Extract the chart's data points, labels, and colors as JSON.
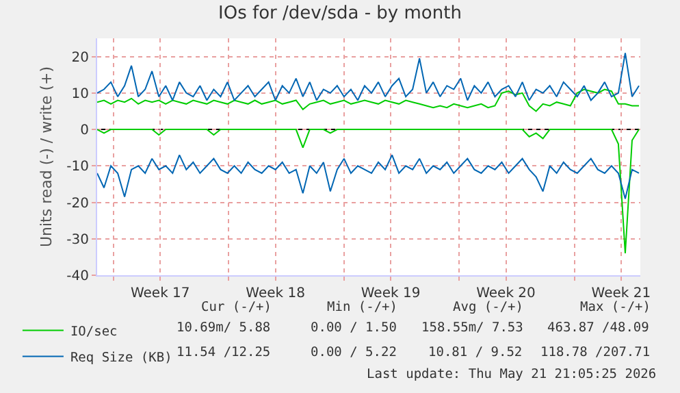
{
  "chart_data": {
    "type": "line",
    "title": "IOs for /dev/sda - by month",
    "ylabel": "Units read (-) / write (+)",
    "x": [
      "2026-04-19T00:00",
      "2026-04-19T10:00",
      "2026-04-19T20:00",
      "2026-04-20T06:00",
      "2026-04-20T16:00",
      "2026-04-21T02:00",
      "2026-04-21T12:00",
      "2026-04-21T22:00",
      "2026-04-22T08:00",
      "2026-04-22T18:00",
      "2026-04-23T04:00",
      "2026-04-23T14:00",
      "2026-04-24T00:00",
      "2026-04-24T10:00",
      "2026-04-24T20:00",
      "2026-04-25T06:00",
      "2026-04-25T16:00",
      "2026-04-26T02:00",
      "2026-04-26T12:00",
      "2026-04-26T22:00",
      "2026-04-27T08:00",
      "2026-04-27T18:00",
      "2026-04-28T04:00",
      "2026-04-28T14:00",
      "2026-04-29T00:00",
      "2026-04-29T10:00",
      "2026-04-29T20:00",
      "2026-04-30T06:00",
      "2026-04-30T16:00",
      "2026-05-01T02:00",
      "2026-05-01T12:00",
      "2026-05-01T22:00",
      "2026-05-02T08:00",
      "2026-05-02T18:00",
      "2026-05-03T04:00",
      "2026-05-03T14:00",
      "2026-05-04T00:00",
      "2026-05-04T10:00",
      "2026-05-04T20:00",
      "2026-05-05T06:00",
      "2026-05-05T16:00",
      "2026-05-06T02:00",
      "2026-05-06T12:00",
      "2026-05-06T22:00",
      "2026-05-07T08:00",
      "2026-05-07T18:00",
      "2026-05-08T04:00",
      "2026-05-08T14:00",
      "2026-05-09T00:00",
      "2026-05-09T10:00",
      "2026-05-09T20:00",
      "2026-05-10T06:00",
      "2026-05-10T16:00",
      "2026-05-11T02:00",
      "2026-05-11T12:00",
      "2026-05-11T22:00",
      "2026-05-12T08:00",
      "2026-05-12T18:00",
      "2026-05-13T04:00",
      "2026-05-13T14:00",
      "2026-05-14T00:00",
      "2026-05-14T10:00",
      "2026-05-14T20:00",
      "2026-05-15T06:00",
      "2026-05-15T16:00",
      "2026-05-16T02:00",
      "2026-05-16T12:00",
      "2026-05-16T22:00",
      "2026-05-17T08:00",
      "2026-05-17T18:00",
      "2026-05-18T04:00",
      "2026-05-18T14:00",
      "2026-05-19T00:00",
      "2026-05-19T10:00",
      "2026-05-19T20:00",
      "2026-05-20T06:00",
      "2026-05-20T16:00",
      "2026-05-21T02:00",
      "2026-05-21T12:00",
      "2026-05-21T22:00"
    ],
    "series": [
      {
        "name": "IO/sec",
        "color": "#00cc00",
        "values": [
          7.5,
          8,
          7,
          8,
          7.5,
          8.5,
          7,
          8,
          7.5,
          8,
          7,
          8,
          7.5,
          7,
          8,
          7.5,
          7,
          8,
          7.5,
          7,
          8,
          7.5,
          7,
          8,
          7,
          7.5,
          8,
          7,
          7.5,
          8,
          5.5,
          7,
          7.5,
          8,
          7,
          7.5,
          8,
          7,
          7.5,
          8,
          7.5,
          7,
          8,
          7.5,
          7,
          8,
          7.5,
          7,
          6.5,
          6,
          6.5,
          6,
          7,
          6.5,
          6,
          6.5,
          7,
          6,
          6.5,
          10,
          10.5,
          9.5,
          10,
          6.5,
          5,
          7,
          6.5,
          7.5,
          7,
          6.5,
          10,
          11,
          10.5,
          10,
          11,
          10.5,
          7,
          7,
          6.5,
          6.5
        ]
      },
      {
        "color": "#00cc00",
        "values": [
          0,
          -1,
          0,
          0,
          0,
          0,
          0,
          0,
          0,
          -1.5,
          0,
          0,
          0,
          0,
          0,
          0,
          0,
          -1.5,
          0,
          0,
          0,
          0,
          0,
          0,
          0,
          0,
          0,
          0,
          0,
          0,
          -5,
          0,
          0,
          0,
          -1,
          0,
          0,
          0,
          0,
          0,
          0,
          0,
          0,
          0,
          0,
          0,
          0,
          0,
          0,
          0,
          0,
          0,
          0,
          0,
          0,
          0,
          0,
          0,
          0,
          0,
          0,
          0,
          0,
          -2,
          -1,
          -2.5,
          0,
          0,
          0,
          0,
          0,
          0,
          0,
          0,
          0,
          0,
          -4,
          -34,
          -3,
          0
        ]
      },
      {
        "name": "Req Size (KB)",
        "color": "#0066b3",
        "values": [
          10,
          11,
          13,
          9,
          12,
          17.5,
          9,
          11,
          16,
          9,
          12,
          8,
          13,
          10,
          9,
          12,
          8,
          11,
          9,
          13,
          8,
          10,
          12,
          9,
          11,
          13,
          8,
          12,
          10,
          14,
          9,
          13,
          8,
          11,
          10,
          12,
          9,
          11,
          8,
          12,
          10,
          13,
          9,
          12,
          14,
          9,
          11,
          19.5,
          10,
          13,
          9,
          12,
          11,
          14,
          8,
          12,
          10,
          13,
          9,
          11,
          12,
          9,
          13,
          8,
          11,
          10,
          12,
          9,
          13,
          11,
          9,
          12,
          8,
          10,
          13,
          9,
          10,
          21,
          9,
          12
        ]
      },
      {
        "color": "#0066b3",
        "values": [
          -12,
          -16,
          -10,
          -12,
          -18.5,
          -11,
          -10,
          -12,
          -8,
          -11,
          -10,
          -12,
          -7,
          -11,
          -9,
          -12,
          -10,
          -8,
          -11,
          -12,
          -10,
          -12,
          -9,
          -11,
          -12,
          -10,
          -11,
          -9,
          -12,
          -11,
          -17.5,
          -10,
          -12,
          -9,
          -17,
          -11,
          -8,
          -12,
          -10,
          -11,
          -12,
          -9,
          -11,
          -7,
          -12,
          -10,
          -11,
          -8,
          -12,
          -10,
          -11,
          -9,
          -12,
          -10,
          -8,
          -11,
          -12,
          -10,
          -11,
          -9,
          -12,
          -10,
          -8,
          -11,
          -13,
          -17,
          -10,
          -12,
          -9,
          -11,
          -12,
          -10,
          -8,
          -11,
          -12,
          -10,
          -12,
          -19,
          -11,
          -12
        ]
      }
    ],
    "xlim": [
      "2026-04-19T00:00",
      "2026-05-22T00:00"
    ],
    "xticks": [
      {
        "value": "2026-04-20T00:00",
        "label": null
      },
      {
        "value": "2026-04-22T20:00",
        "label": "Week 17"
      },
      {
        "value": "2026-04-27T00:00",
        "label": null
      },
      {
        "value": "2026-04-29T20:00",
        "label": "Week 18"
      },
      {
        "value": "2026-05-04T00:00",
        "label": null
      },
      {
        "value": "2026-05-06T20:00",
        "label": "Week 19"
      },
      {
        "value": "2026-05-11T00:00",
        "label": null
      },
      {
        "value": "2026-05-13T20:00",
        "label": "Week 20"
      },
      {
        "value": "2026-05-18T00:00",
        "label": null
      },
      {
        "value": "2026-05-20T20:00",
        "label": "Week 21"
      }
    ],
    "ylim": [
      -40,
      25
    ],
    "yticks": [
      -40,
      -30,
      -20,
      -10,
      0,
      10,
      20
    ],
    "ref_lines": [
      {
        "axis": "y",
        "value": 0,
        "color": "#000000"
      }
    ],
    "grid": true,
    "legend": "bottom left",
    "marker": "none",
    "line_style": "solid",
    "annotations": [
      "Cur (-/+)",
      "Min (-/+)",
      "Avg (-/+)",
      "Max (-/+)",
      "10.69m/ 5.88",
      "0.00 / 1.50",
      "158.55m/ 7.53",
      "463.87 /48.09",
      "11.54 /12.25",
      "0.00 / 5.22",
      "10.81 / 9.52",
      "118.78 /207.71",
      "Last update: Thu May 21 21:05:25 2026"
    ]
  }
}
